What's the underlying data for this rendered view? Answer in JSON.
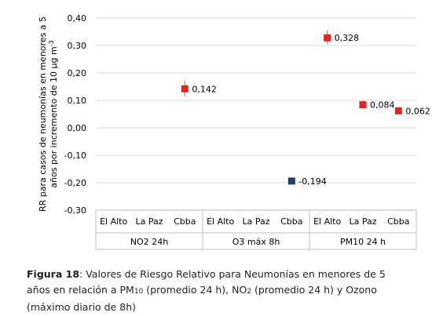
{
  "chart_data": {
    "type": "scatter",
    "ylim": [
      -0.3,
      0.4
    ],
    "yticks": [
      "0,40",
      "0,30",
      "0,20",
      "0,10",
      "0,00",
      "-0,10",
      "-0,20",
      "-0,30"
    ],
    "ytick_values": [
      0.4,
      0.3,
      0.2,
      0.1,
      0.0,
      -0.1,
      -0.2,
      -0.3
    ],
    "ylabel_line1": "RR para casos de neumonías en menores a 5",
    "ylabel_line2": "años por incremento de 10 μg m",
    "ylabel_sup": "-3",
    "grid": true,
    "groups": [
      {
        "name": "NO2 24h",
        "categories": [
          "El Alto",
          "La Paz",
          "Cbba"
        ]
      },
      {
        "name": "O3 máx 8h",
        "categories": [
          "El Alto",
          "La Paz",
          "Cbba"
        ]
      },
      {
        "name": "PM10 24 h",
        "categories": [
          "El Alto",
          "La Paz",
          "Cbba"
        ]
      }
    ],
    "points": [
      {
        "index": 2,
        "value": 0.142,
        "low": 0.115,
        "high": 0.172,
        "label": "0,142",
        "color": "#e8231f"
      },
      {
        "index": 5,
        "value": -0.194,
        "low": -0.205,
        "high": -0.183,
        "label": "-0,194",
        "color": "#1f3e78"
      },
      {
        "index": 6,
        "value": 0.328,
        "low": 0.305,
        "high": 0.355,
        "label": "0,328",
        "color": "#e8231f"
      },
      {
        "index": 7,
        "value": 0.084,
        "low": 0.07,
        "high": 0.1,
        "label": "0,084",
        "color": "#e8231f"
      },
      {
        "index": 8,
        "value": 0.062,
        "low": 0.052,
        "high": 0.072,
        "label": "0,062",
        "color": "#e8231f"
      }
    ]
  },
  "caption": {
    "fig_num": "Figura 18",
    "text1": ":  Valores de Riesgo Relativo para Neumonías en menores de 5",
    "text2a": "años en relación a PM",
    "text2b": "10",
    "text2c": " (promedio 24 h), NO",
    "text2d": "2",
    "text2e": " (promedio 24 h) y Ozono",
    "text3": "(máximo diario de 8h)"
  }
}
